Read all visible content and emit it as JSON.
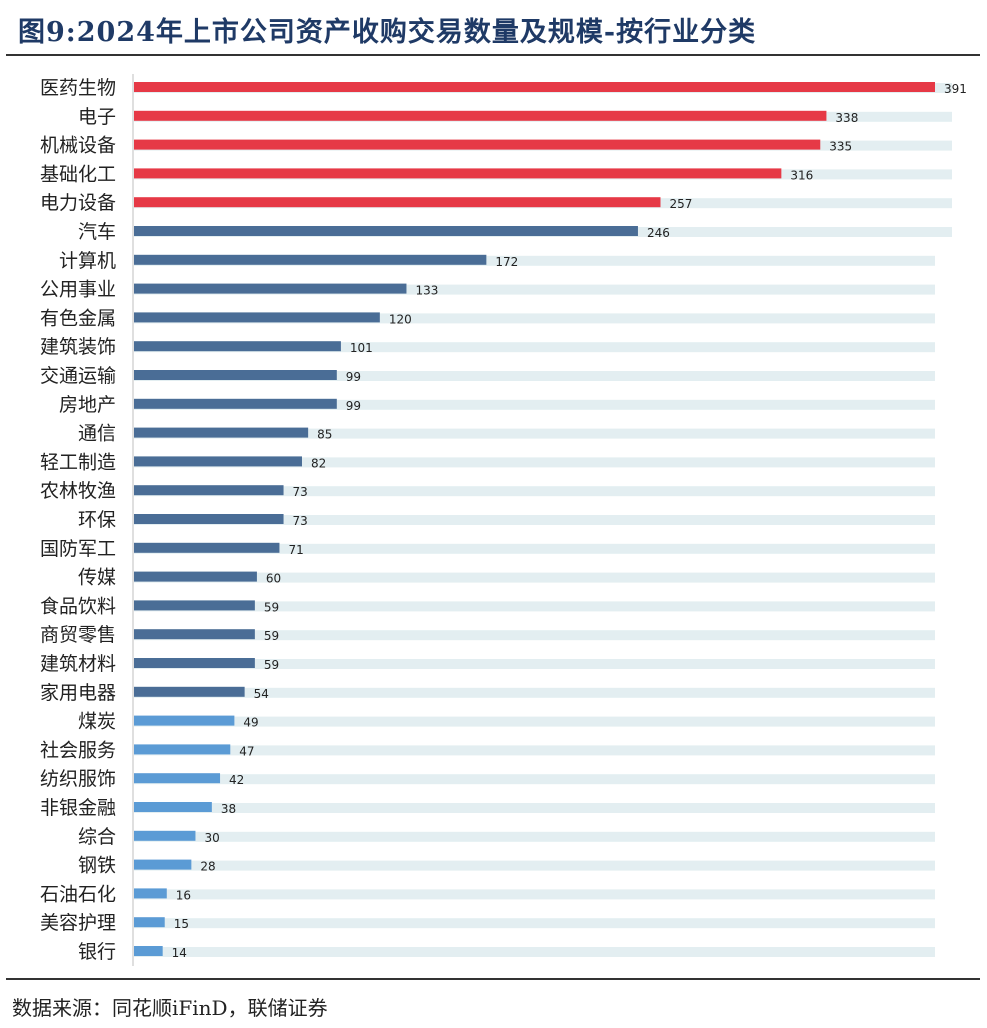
{
  "title": "图9:2024年上市公司资产收购交易数量及规模-按行业分类",
  "source": "数据来源：同花顺iFinD，联储证券",
  "colors": {
    "top": "#e63946",
    "mid": "#4a6d96",
    "low": "#5b9bd5",
    "background_bar": "#e3eef1"
  },
  "chart_data": {
    "type": "bar",
    "orientation": "horizontal",
    "categories": [
      "医药生物",
      "电子",
      "机械设备",
      "基础化工",
      "电力设备",
      "汽车",
      "计算机",
      "公用事业",
      "有色金属",
      "建筑装饰",
      "交通运输",
      "房地产",
      "通信",
      "轻工制造",
      "农林牧渔",
      "环保",
      "国防军工",
      "传媒",
      "食品饮料",
      "商贸零售",
      "建筑材料",
      "家用电器",
      "煤炭",
      "社会服务",
      "纺织服饰",
      "非银金融",
      "综合",
      "钢铁",
      "石油石化",
      "美容护理",
      "银行"
    ],
    "values": [
      391,
      338,
      335,
      316,
      257,
      246,
      172,
      133,
      120,
      101,
      99,
      99,
      85,
      82,
      73,
      73,
      71,
      60,
      59,
      59,
      59,
      54,
      49,
      47,
      42,
      38,
      30,
      28,
      16,
      15,
      14
    ],
    "color_groups": [
      "top",
      "top",
      "top",
      "top",
      "top",
      "mid",
      "mid",
      "mid",
      "mid",
      "mid",
      "mid",
      "mid",
      "mid",
      "mid",
      "mid",
      "mid",
      "mid",
      "mid",
      "mid",
      "mid",
      "mid",
      "mid",
      "low",
      "low",
      "low",
      "low",
      "low",
      "low",
      "low",
      "low",
      "low"
    ],
    "xlim": [
      0,
      391
    ],
    "data_labels": true,
    "grid": false,
    "legend": "none"
  }
}
